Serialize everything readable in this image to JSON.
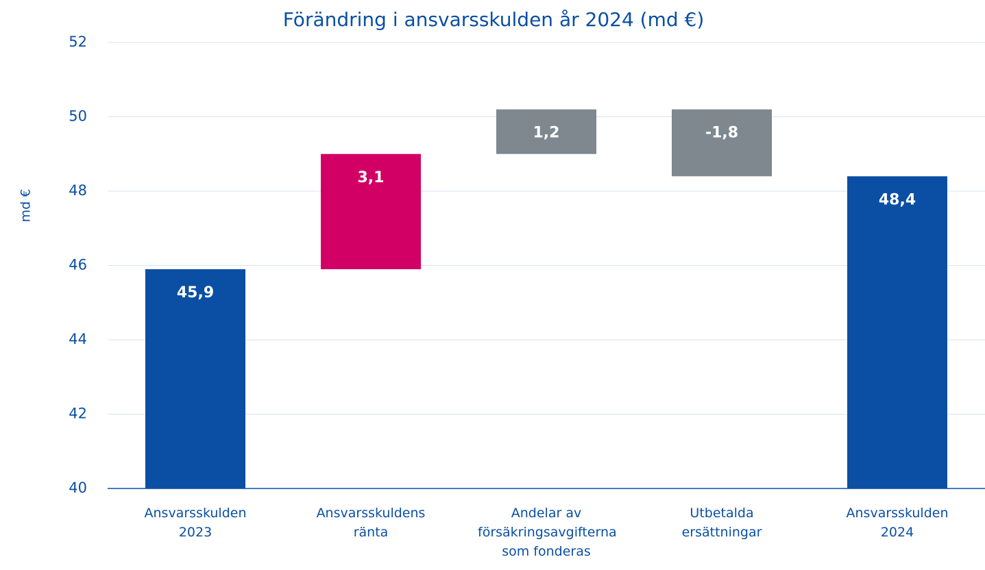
{
  "chart_data": {
    "type": "waterfall",
    "title": "Förändring i ansvarsskulden år 2024 (md €)",
    "y_label": "md €",
    "categories": [
      "Ansvarsskulden 2023",
      "Ansvarsskuldens ränta",
      "Andelar av försäkringsavgifterna som fonderas",
      "Utbetalda ersättningar",
      "Ansvarsskulden 2024"
    ],
    "values": [
      45.9,
      3.1,
      1.2,
      -1.8,
      48.4
    ],
    "value_labels": [
      "45,9",
      "3,1",
      "1,2",
      "-1,8",
      "48,4"
    ],
    "totals": [
      true,
      false,
      false,
      false,
      true
    ],
    "colors": [
      "#0a4fa3",
      "#d20064",
      "#7f888e",
      "#7f888e",
      "#0a4fa3"
    ],
    "ylim": [
      40,
      52
    ],
    "yticks": [
      40,
      42,
      44,
      46,
      48,
      50,
      52
    ],
    "grid": true
  }
}
